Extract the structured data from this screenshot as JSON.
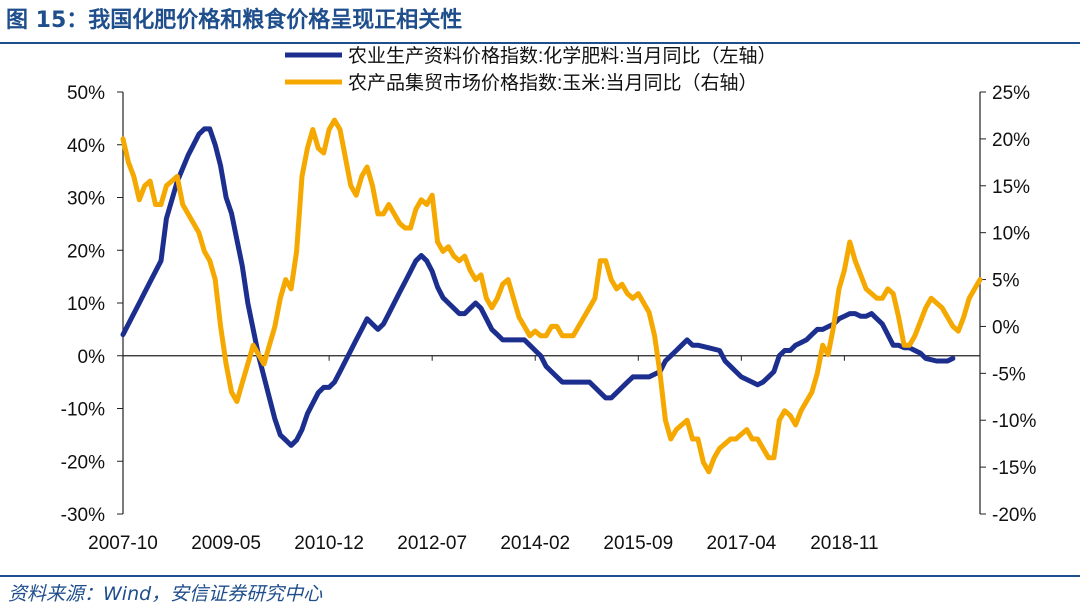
{
  "header": {
    "title": "图 15：我国化肥价格和粮食价格呈现正相关性"
  },
  "footer": {
    "source": "资料来源：Wind，安信证券研究中心"
  },
  "chart_data": {
    "type": "line",
    "title": "我国化肥价格和粮食价格呈现正相关性",
    "x_ticks": [
      "2007-10",
      "2009-05",
      "2010-12",
      "2012-07",
      "2014-02",
      "2015-09",
      "2017-04",
      "2018-11"
    ],
    "x_domain_months": [
      0,
      158
    ],
    "y_left": {
      "label": "左轴",
      "lim": [
        -30,
        50
      ],
      "ticks": [
        -30,
        -20,
        -10,
        0,
        10,
        20,
        30,
        40,
        50
      ],
      "tick_labels": [
        "-30%",
        "-20%",
        "-10%",
        "0%",
        "10%",
        "20%",
        "30%",
        "40%",
        "50%"
      ]
    },
    "y_right": {
      "label": "右轴",
      "lim": [
        -20,
        25
      ],
      "ticks": [
        -20,
        -15,
        -10,
        -5,
        0,
        5,
        10,
        15,
        20,
        25
      ],
      "tick_labels": [
        "-20%",
        "-15%",
        "-10%",
        "-5%",
        "0%",
        "5%",
        "10%",
        "15%",
        "20%",
        "25%"
      ]
    },
    "series": [
      {
        "name": "农业生产资料价格指数:化学肥料:当月同比（左轴）",
        "axis": "left",
        "color": "#1c2f8f",
        "points": [
          [
            0,
            4
          ],
          [
            2,
            8
          ],
          [
            3,
            10
          ],
          [
            4,
            12
          ],
          [
            5,
            14
          ],
          [
            7,
            18
          ],
          [
            8,
            26
          ],
          [
            10,
            33
          ],
          [
            12,
            38
          ],
          [
            13,
            40
          ],
          [
            14,
            42
          ],
          [
            15,
            43
          ],
          [
            16,
            43
          ],
          [
            17,
            40
          ],
          [
            18,
            36
          ],
          [
            19,
            30
          ],
          [
            20,
            27
          ],
          [
            21,
            22
          ],
          [
            22,
            17
          ],
          [
            23,
            10
          ],
          [
            24,
            5
          ],
          [
            25,
            0
          ],
          [
            26,
            -4
          ],
          [
            27,
            -8
          ],
          [
            28,
            -12
          ],
          [
            29,
            -15
          ],
          [
            30,
            -16
          ],
          [
            31,
            -17
          ],
          [
            32,
            -16
          ],
          [
            33,
            -14
          ],
          [
            34,
            -11
          ],
          [
            35,
            -9
          ],
          [
            36,
            -7
          ],
          [
            37,
            -6
          ],
          [
            38,
            -6
          ],
          [
            39,
            -5
          ],
          [
            40,
            -3
          ],
          [
            41,
            -1
          ],
          [
            42,
            1
          ],
          [
            43,
            3
          ],
          [
            44,
            5
          ],
          [
            45,
            7
          ],
          [
            46,
            6
          ],
          [
            47,
            5
          ],
          [
            48,
            6
          ],
          [
            49,
            8
          ],
          [
            50,
            10
          ],
          [
            51,
            12
          ],
          [
            52,
            14
          ],
          [
            53,
            16
          ],
          [
            54,
            18
          ],
          [
            55,
            19
          ],
          [
            56,
            18
          ],
          [
            57,
            16
          ],
          [
            58,
            13
          ],
          [
            59,
            11
          ],
          [
            60,
            10
          ],
          [
            61,
            9
          ],
          [
            62,
            8
          ],
          [
            63,
            8
          ],
          [
            64,
            9
          ],
          [
            65,
            10
          ],
          [
            66,
            9
          ],
          [
            67,
            7
          ],
          [
            68,
            5
          ],
          [
            69,
            4
          ],
          [
            70,
            3
          ],
          [
            72,
            3
          ],
          [
            74,
            3
          ],
          [
            75,
            2
          ],
          [
            76,
            1
          ],
          [
            77,
            0
          ],
          [
            78,
            -2
          ],
          [
            79,
            -3
          ],
          [
            80,
            -4
          ],
          [
            81,
            -5
          ],
          [
            82,
            -5
          ],
          [
            83,
            -5
          ],
          [
            84,
            -5
          ],
          [
            85,
            -5
          ],
          [
            86,
            -5
          ],
          [
            87,
            -6
          ],
          [
            88,
            -7
          ],
          [
            89,
            -8
          ],
          [
            90,
            -8
          ],
          [
            91,
            -7
          ],
          [
            92,
            -6
          ],
          [
            93,
            -5
          ],
          [
            94,
            -4
          ],
          [
            95,
            -4
          ],
          [
            97,
            -4
          ],
          [
            99,
            -3
          ],
          [
            100,
            -1
          ],
          [
            101,
            0
          ],
          [
            102,
            1
          ],
          [
            103,
            2
          ],
          [
            104,
            3
          ],
          [
            105,
            2
          ],
          [
            106,
            2
          ],
          [
            108,
            1.5
          ],
          [
            110,
            1
          ],
          [
            111,
            -1
          ],
          [
            112,
            -2
          ],
          [
            113,
            -3
          ],
          [
            114,
            -4
          ],
          [
            115,
            -4.5
          ],
          [
            116,
            -5
          ],
          [
            117,
            -5.5
          ],
          [
            118,
            -5
          ],
          [
            119,
            -4
          ],
          [
            120,
            -3
          ],
          [
            121,
            0
          ],
          [
            122,
            1
          ],
          [
            123,
            1
          ],
          [
            124,
            2
          ],
          [
            125,
            2.5
          ],
          [
            126,
            3
          ],
          [
            127,
            4
          ],
          [
            128,
            5
          ],
          [
            129,
            5
          ],
          [
            130,
            5.5
          ],
          [
            131,
            6
          ],
          [
            132,
            7
          ],
          [
            133,
            7.5
          ],
          [
            134,
            8
          ],
          [
            135,
            8
          ],
          [
            136,
            7.5
          ],
          [
            137,
            7.5
          ],
          [
            138,
            8
          ],
          [
            139,
            7
          ],
          [
            140,
            6
          ],
          [
            141,
            4
          ],
          [
            142,
            2
          ],
          [
            143,
            2
          ],
          [
            144,
            1.5
          ],
          [
            145,
            1.5
          ],
          [
            146,
            1
          ],
          [
            147,
            0.5
          ],
          [
            148,
            -0.5
          ],
          [
            150,
            -1
          ],
          [
            152,
            -1
          ],
          [
            153,
            -0.5
          ]
        ]
      },
      {
        "name": "农产品集贸市场价格指数:玉米:当月同比（右轴）",
        "axis": "right",
        "color": "#f5a800",
        "points": [
          [
            0,
            20
          ],
          [
            1,
            17.5
          ],
          [
            2,
            16
          ],
          [
            3,
            13.5
          ],
          [
            4,
            15
          ],
          [
            5,
            15.5
          ],
          [
            6,
            13
          ],
          [
            7,
            13
          ],
          [
            8,
            15
          ],
          [
            9,
            15.5
          ],
          [
            10,
            16
          ],
          [
            11,
            13
          ],
          [
            12,
            12
          ],
          [
            13,
            11
          ],
          [
            14,
            10
          ],
          [
            15,
            8
          ],
          [
            16,
            7
          ],
          [
            17,
            5
          ],
          [
            18,
            0
          ],
          [
            19,
            -4
          ],
          [
            20,
            -7
          ],
          [
            21,
            -8
          ],
          [
            22,
            -6
          ],
          [
            23,
            -4
          ],
          [
            24,
            -2
          ],
          [
            25,
            -3
          ],
          [
            26,
            -4
          ],
          [
            27,
            -2
          ],
          [
            28,
            0
          ],
          [
            29,
            3
          ],
          [
            30,
            5
          ],
          [
            31,
            4
          ],
          [
            32,
            8
          ],
          [
            33,
            16
          ],
          [
            34,
            19
          ],
          [
            35,
            21
          ],
          [
            36,
            19
          ],
          [
            37,
            18.5
          ],
          [
            38,
            21
          ],
          [
            39,
            22
          ],
          [
            40,
            21
          ],
          [
            41,
            18
          ],
          [
            42,
            15
          ],
          [
            43,
            14
          ],
          [
            44,
            16
          ],
          [
            45,
            17
          ],
          [
            46,
            15
          ],
          [
            47,
            12
          ],
          [
            48,
            12
          ],
          [
            49,
            13
          ],
          [
            50,
            12
          ],
          [
            51,
            11
          ],
          [
            52,
            10.5
          ],
          [
            53,
            10.5
          ],
          [
            54,
            12.5
          ],
          [
            55,
            13.5
          ],
          [
            56,
            13
          ],
          [
            57,
            14
          ],
          [
            58,
            9
          ],
          [
            59,
            8
          ],
          [
            60,
            8.5
          ],
          [
            61,
            7.5
          ],
          [
            62,
            7
          ],
          [
            63,
            7.5
          ],
          [
            64,
            6
          ],
          [
            65,
            5
          ],
          [
            66,
            5.5
          ],
          [
            67,
            3
          ],
          [
            68,
            2
          ],
          [
            69,
            3
          ],
          [
            70,
            4.5
          ],
          [
            71,
            5
          ],
          [
            72,
            3
          ],
          [
            73,
            1
          ],
          [
            74,
            0
          ],
          [
            75,
            -1
          ],
          [
            76,
            -0.5
          ],
          [
            77,
            -1
          ],
          [
            78,
            -1
          ],
          [
            79,
            0
          ],
          [
            80,
            0
          ],
          [
            81,
            -1
          ],
          [
            82,
            -1
          ],
          [
            83,
            -1
          ],
          [
            84,
            0
          ],
          [
            85,
            1
          ],
          [
            86,
            2
          ],
          [
            87,
            3
          ],
          [
            88,
            7
          ],
          [
            89,
            7
          ],
          [
            90,
            5
          ],
          [
            91,
            4
          ],
          [
            92,
            4.5
          ],
          [
            93,
            3.5
          ],
          [
            94,
            3
          ],
          [
            95,
            3.5
          ],
          [
            96,
            2.5
          ],
          [
            97,
            1.5
          ],
          [
            98,
            -1
          ],
          [
            99,
            -5
          ],
          [
            100,
            -10
          ],
          [
            101,
            -12
          ],
          [
            102,
            -11
          ],
          [
            103,
            -10.5
          ],
          [
            104,
            -10
          ],
          [
            105,
            -12
          ],
          [
            106,
            -12
          ],
          [
            107,
            -14.5
          ],
          [
            108,
            -15.5
          ],
          [
            109,
            -14
          ],
          [
            110,
            -13
          ],
          [
            111,
            -12.5
          ],
          [
            112,
            -12
          ],
          [
            113,
            -12
          ],
          [
            114,
            -11.5
          ],
          [
            115,
            -11
          ],
          [
            116,
            -12
          ],
          [
            117,
            -12
          ],
          [
            118,
            -13
          ],
          [
            119,
            -14
          ],
          [
            120,
            -14
          ],
          [
            121,
            -10
          ],
          [
            122,
            -9
          ],
          [
            123,
            -9.5
          ],
          [
            124,
            -10.5
          ],
          [
            125,
            -9
          ],
          [
            126,
            -8
          ],
          [
            127,
            -7
          ],
          [
            128,
            -5
          ],
          [
            129,
            -2
          ],
          [
            130,
            -3
          ],
          [
            131,
            0
          ],
          [
            132,
            4
          ],
          [
            133,
            6
          ],
          [
            134,
            9
          ],
          [
            135,
            7
          ],
          [
            136,
            5.5
          ],
          [
            137,
            4
          ],
          [
            138,
            3.5
          ],
          [
            139,
            3
          ],
          [
            140,
            3
          ],
          [
            141,
            4
          ],
          [
            142,
            3.5
          ],
          [
            143,
            1
          ],
          [
            144,
            -2
          ],
          [
            145,
            -2
          ],
          [
            146,
            -1
          ],
          [
            147,
            0.5
          ],
          [
            148,
            2
          ],
          [
            149,
            3
          ],
          [
            150,
            2.5
          ],
          [
            151,
            2
          ],
          [
            152,
            1
          ],
          [
            153,
            0
          ],
          [
            154,
            -0.5
          ],
          [
            155,
            1
          ],
          [
            156,
            3
          ],
          [
            157,
            4
          ],
          [
            158,
            5
          ]
        ]
      }
    ],
    "legend_position": "top-center"
  }
}
